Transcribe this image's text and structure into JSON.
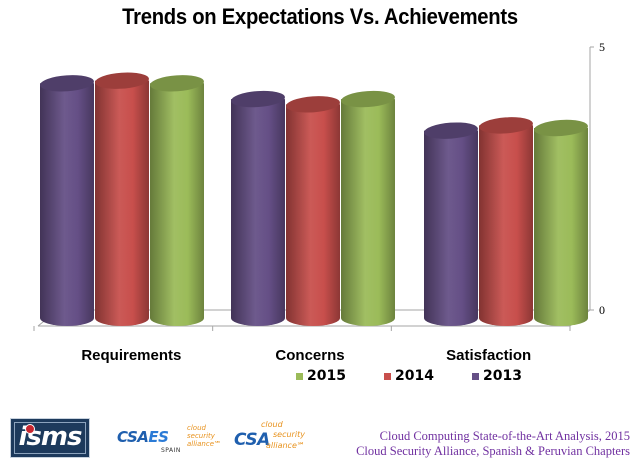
{
  "chart_data": {
    "type": "bar",
    "style": "3d-cylinder",
    "title": "Trends on Expectations Vs. Achievements",
    "categories": [
      "Requirements",
      "Concerns",
      "Satisfaction"
    ],
    "series": [
      {
        "name": "2013",
        "color": "#654f86",
        "values": [
          4.5,
          4.2,
          3.6
        ]
      },
      {
        "name": "2014",
        "color": "#c84f4c",
        "values": [
          4.55,
          4.1,
          3.7
        ]
      },
      {
        "name": "2015",
        "color": "#9bbb59",
        "values": [
          4.5,
          4.2,
          3.65
        ]
      }
    ],
    "legend": [
      {
        "name": "2015",
        "color": "#9bbb59"
      },
      {
        "name": "2014",
        "color": "#c84f4c"
      },
      {
        "name": "2013",
        "color": "#654f86"
      }
    ],
    "legend_position": "bottom",
    "xlabel": "",
    "ylabel": "",
    "ylim": [
      0,
      5
    ],
    "yticks": [
      "0",
      "5"
    ],
    "y_axis_side": "right",
    "grid": false
  },
  "footer": {
    "logos": {
      "isms": "isms",
      "csaes_big_1": "CSA",
      "csaes_big_2": "ES",
      "csaes_small": [
        "cloud",
        "security",
        "alliance℠"
      ],
      "csaes_spain": "SPAIN",
      "csa_big": "CSA",
      "csa_small": [
        "cloud",
        "security",
        "alliance℠"
      ]
    },
    "line1": "Cloud Computing State-of-the-Art Analysis,  2015",
    "line2": "Cloud Security Alliance, Spanish & Peruvian Chapters"
  }
}
